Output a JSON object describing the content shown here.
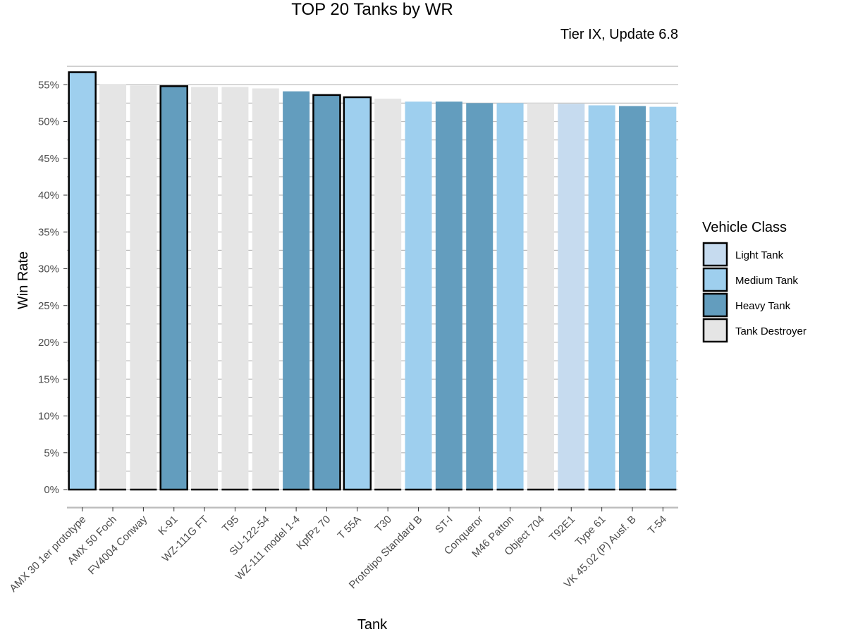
{
  "chart_data": {
    "type": "bar",
    "title": "TOP 20 Tanks by WR",
    "subtitle": "Tier IX, Update 6.8",
    "xlabel": "Tank",
    "ylabel": "Win Rate",
    "ylim": [
      0,
      0.57
    ],
    "y_ticks": [
      0,
      0.05,
      0.1,
      0.15,
      0.2,
      0.25,
      0.3,
      0.35,
      0.4,
      0.45,
      0.5,
      0.55
    ],
    "y_tick_labels": [
      "0%",
      "5%",
      "10%",
      "15%",
      "20%",
      "25%",
      "30%",
      "35%",
      "40%",
      "45%",
      "50%",
      "55%"
    ],
    "grid": true,
    "legend": {
      "title": "Vehicle Class",
      "position": "right",
      "entries": [
        {
          "label": "Light Tank",
          "color": "#c6dbef"
        },
        {
          "label": "Medium Tank",
          "color": "#9ecfee"
        },
        {
          "label": "Heavy Tank",
          "color": "#639dbe"
        },
        {
          "label": "Tank Destroyer",
          "color": "#e5e5e5"
        }
      ]
    },
    "categories": [
      "AMX 30 1er prototype",
      "AMX 50 Foch",
      "FV4004 Conway",
      "K-91",
      "WZ-111G FT",
      "T95",
      "SU-122-54",
      "WZ-111 model 1-4",
      "KpfPz 70",
      "T 55A",
      "T30",
      "Prototipo Standard B",
      "ST-I",
      "Conqueror",
      "M46 Patton",
      "Object 704",
      "T92E1",
      "Type 61",
      "VK 45.02 (P) Ausf. B",
      "T-54"
    ],
    "values": [
      0.567,
      0.551,
      0.549,
      0.548,
      0.547,
      0.547,
      0.545,
      0.541,
      0.536,
      0.533,
      0.531,
      0.527,
      0.527,
      0.525,
      0.525,
      0.525,
      0.524,
      0.522,
      0.521,
      0.52
    ],
    "classes": [
      "Medium Tank",
      "Tank Destroyer",
      "Tank Destroyer",
      "Heavy Tank",
      "Tank Destroyer",
      "Tank Destroyer",
      "Tank Destroyer",
      "Heavy Tank",
      "Heavy Tank",
      "Medium Tank",
      "Tank Destroyer",
      "Medium Tank",
      "Heavy Tank",
      "Heavy Tank",
      "Medium Tank",
      "Tank Destroyer",
      "Light Tank",
      "Medium Tank",
      "Heavy Tank",
      "Medium Tank"
    ],
    "outlined": [
      true,
      false,
      false,
      true,
      false,
      false,
      false,
      false,
      true,
      true,
      false,
      false,
      false,
      false,
      false,
      false,
      false,
      false,
      false,
      false
    ]
  }
}
